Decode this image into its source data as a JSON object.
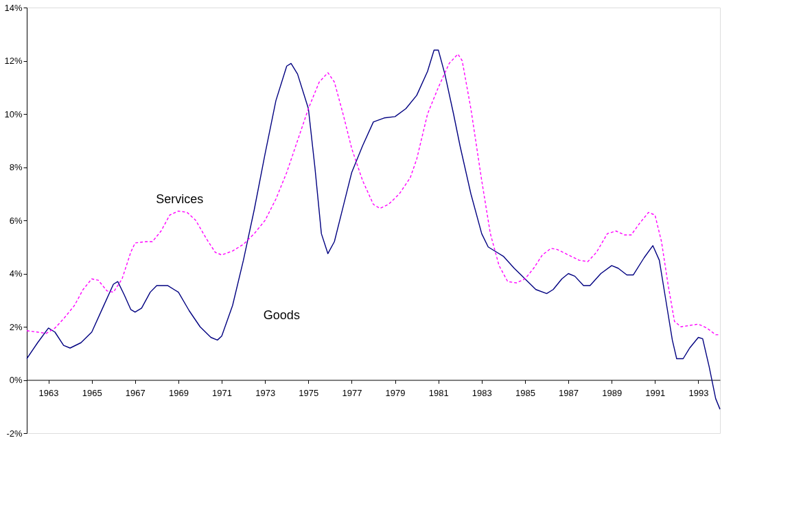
{
  "chart_data": {
    "type": "line",
    "xlim": [
      1962,
      1994
    ],
    "xticks": [
      1963,
      1965,
      1967,
      1969,
      1971,
      1973,
      1975,
      1977,
      1979,
      1981,
      1983,
      1985,
      1987,
      1989,
      1991,
      1993
    ],
    "ylim": [
      -2,
      14
    ],
    "yticks": [
      {
        "value": -2,
        "label": "-2%"
      },
      {
        "value": 0,
        "label": "0%"
      },
      {
        "value": 2,
        "label": "2%"
      },
      {
        "value": 4,
        "label": "4%"
      },
      {
        "value": 6,
        "label": "6%"
      },
      {
        "value": 8,
        "label": "8%"
      },
      {
        "value": 10,
        "label": "10%"
      },
      {
        "value": 12,
        "label": "12%"
      },
      {
        "value": 14,
        "label": "14%"
      }
    ],
    "grid": false,
    "marker": "none",
    "legend": false,
    "series": [
      {
        "name": "Goods",
        "color": "#000080",
        "line_style": "solid",
        "x": [
          1962.0,
          1962.5,
          1963.0,
          1963.3,
          1963.7,
          1964.0,
          1964.5,
          1965.0,
          1965.5,
          1966.0,
          1966.2,
          1966.5,
          1966.8,
          1967.0,
          1967.3,
          1967.7,
          1968.0,
          1968.5,
          1969.0,
          1969.5,
          1970.0,
          1970.5,
          1970.8,
          1971.0,
          1971.5,
          1972.0,
          1972.5,
          1973.0,
          1973.5,
          1974.0,
          1974.2,
          1974.5,
          1975.0,
          1975.3,
          1975.6,
          1975.9,
          1976.2,
          1976.6,
          1977.0,
          1977.5,
          1978.0,
          1978.5,
          1979.0,
          1979.5,
          1980.0,
          1980.5,
          1980.8,
          1981.0,
          1981.3,
          1981.7,
          1982.0,
          1982.5,
          1983.0,
          1983.3,
          1983.7,
          1984.0,
          1984.5,
          1985.0,
          1985.5,
          1986.0,
          1986.3,
          1986.7,
          1987.0,
          1987.3,
          1987.7,
          1988.0,
          1988.5,
          1989.0,
          1989.3,
          1989.7,
          1990.0,
          1990.5,
          1990.9,
          1991.2,
          1991.5,
          1991.8,
          1992.0,
          1992.3,
          1992.6,
          1993.0,
          1993.2,
          1993.5,
          1993.8,
          1994.0
        ],
        "values": [
          0.8,
          1.4,
          1.95,
          1.8,
          1.3,
          1.2,
          1.4,
          1.8,
          2.7,
          3.6,
          3.7,
          3.2,
          2.65,
          2.55,
          2.7,
          3.3,
          3.55,
          3.55,
          3.3,
          2.6,
          2.0,
          1.6,
          1.5,
          1.65,
          2.8,
          4.5,
          6.4,
          8.5,
          10.5,
          11.8,
          11.9,
          11.5,
          10.2,
          8.0,
          5.5,
          4.75,
          5.2,
          6.5,
          7.8,
          8.8,
          9.7,
          9.85,
          9.9,
          10.2,
          10.7,
          11.6,
          12.4,
          12.4,
          11.5,
          10.0,
          8.8,
          7.0,
          5.5,
          5.0,
          4.8,
          4.65,
          4.2,
          3.8,
          3.4,
          3.25,
          3.4,
          3.8,
          4.0,
          3.9,
          3.55,
          3.55,
          4.0,
          4.3,
          4.2,
          3.95,
          3.95,
          4.6,
          5.05,
          4.5,
          3.0,
          1.5,
          0.8,
          0.8,
          1.2,
          1.6,
          1.55,
          0.5,
          -0.7,
          -1.1
        ]
      },
      {
        "name": "Services",
        "color": "#ff00ff",
        "line_style": "dashed",
        "x": [
          1962.0,
          1962.5,
          1962.9,
          1963.3,
          1963.7,
          1964.2,
          1964.6,
          1965.0,
          1965.3,
          1965.7,
          1966.0,
          1966.4,
          1966.8,
          1967.0,
          1967.5,
          1967.8,
          1968.2,
          1968.6,
          1969.0,
          1969.4,
          1969.8,
          1970.3,
          1970.7,
          1971.0,
          1971.5,
          1972.0,
          1972.5,
          1973.0,
          1973.5,
          1974.0,
          1974.5,
          1975.0,
          1975.5,
          1975.9,
          1976.2,
          1976.6,
          1977.0,
          1977.5,
          1978.0,
          1978.3,
          1978.7,
          1979.2,
          1979.7,
          1980.0,
          1980.5,
          1981.0,
          1981.5,
          1981.9,
          1982.1,
          1982.5,
          1983.0,
          1983.4,
          1983.8,
          1984.2,
          1984.6,
          1985.0,
          1985.4,
          1985.8,
          1986.2,
          1986.5,
          1987.0,
          1987.5,
          1987.9,
          1988.3,
          1988.8,
          1989.2,
          1989.6,
          1989.9,
          1990.3,
          1990.7,
          1991.0,
          1991.3,
          1991.6,
          1991.9,
          1992.2,
          1992.6,
          1993.0,
          1993.4,
          1993.8,
          1994.0
        ],
        "values": [
          1.85,
          1.8,
          1.75,
          1.95,
          2.3,
          2.8,
          3.4,
          3.8,
          3.75,
          3.35,
          3.3,
          3.8,
          4.8,
          5.15,
          5.2,
          5.2,
          5.6,
          6.2,
          6.35,
          6.3,
          6.0,
          5.3,
          4.8,
          4.7,
          4.85,
          5.1,
          5.5,
          6.0,
          6.8,
          7.8,
          9.0,
          10.2,
          11.2,
          11.55,
          11.2,
          10.0,
          8.7,
          7.5,
          6.6,
          6.45,
          6.6,
          7.0,
          7.6,
          8.3,
          10.0,
          11.0,
          11.9,
          12.25,
          12.0,
          10.2,
          7.5,
          5.5,
          4.3,
          3.7,
          3.65,
          3.8,
          4.2,
          4.7,
          4.95,
          4.9,
          4.7,
          4.5,
          4.45,
          4.8,
          5.5,
          5.6,
          5.45,
          5.45,
          5.9,
          6.3,
          6.2,
          5.2,
          3.6,
          2.2,
          2.0,
          2.05,
          2.1,
          1.95,
          1.7,
          1.7
        ]
      }
    ]
  }
}
